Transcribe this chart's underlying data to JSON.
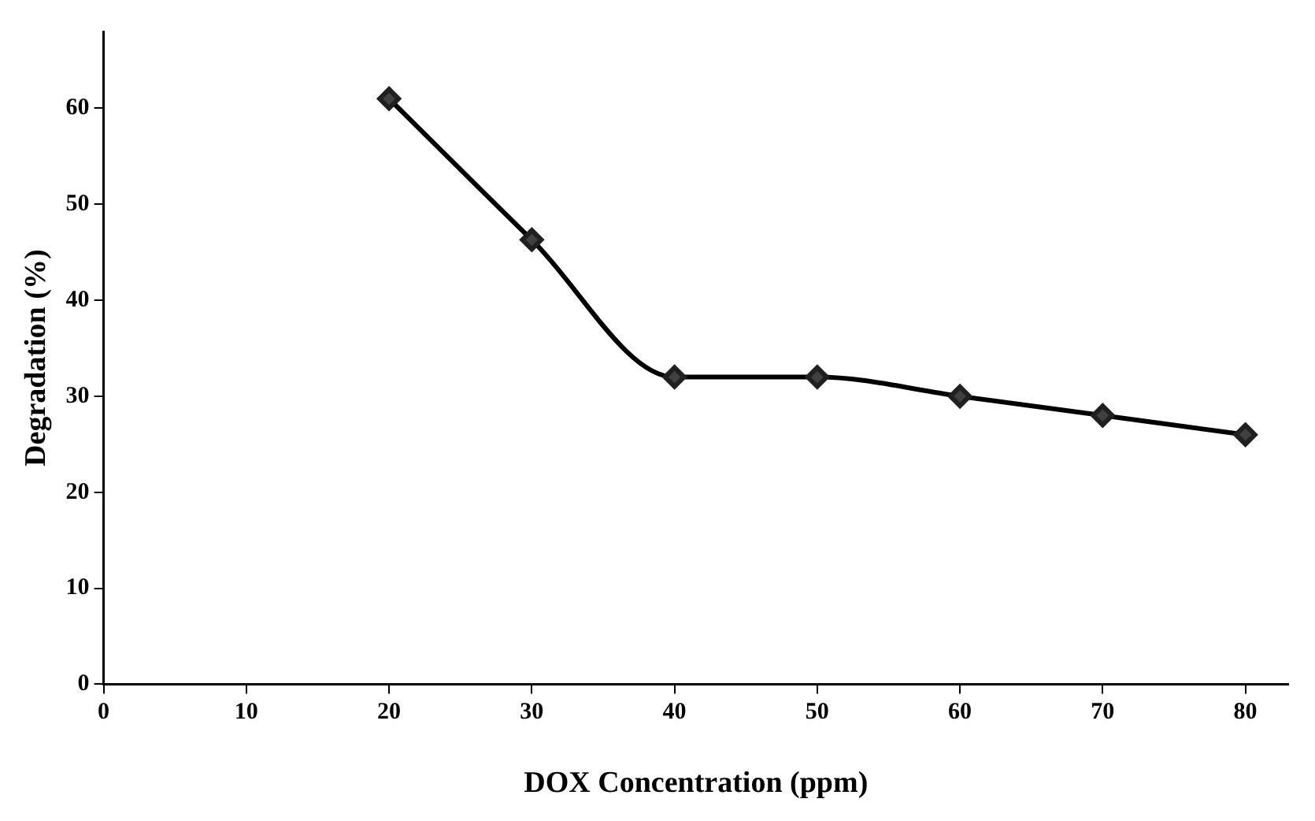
{
  "chart_data": {
    "type": "line",
    "xlabel": "DOX Concentration (ppm)",
    "ylabel": "Degradation (%)",
    "x": [
      20,
      30,
      40,
      50,
      60,
      70,
      80
    ],
    "series": [
      {
        "color": "#000000",
        "values": [
          61,
          46.3,
          32,
          32,
          30,
          28,
          26
        ]
      }
    ],
    "xlim": [
      0,
      83
    ],
    "xticks": [
      0,
      10,
      20,
      30,
      40,
      50,
      60,
      70,
      80
    ],
    "ylim": [
      0,
      68
    ],
    "yticks": [
      0,
      10,
      20,
      30,
      40,
      50,
      60
    ],
    "grid": false,
    "legend": false,
    "marker": "diamond",
    "line_style": "solid"
  }
}
